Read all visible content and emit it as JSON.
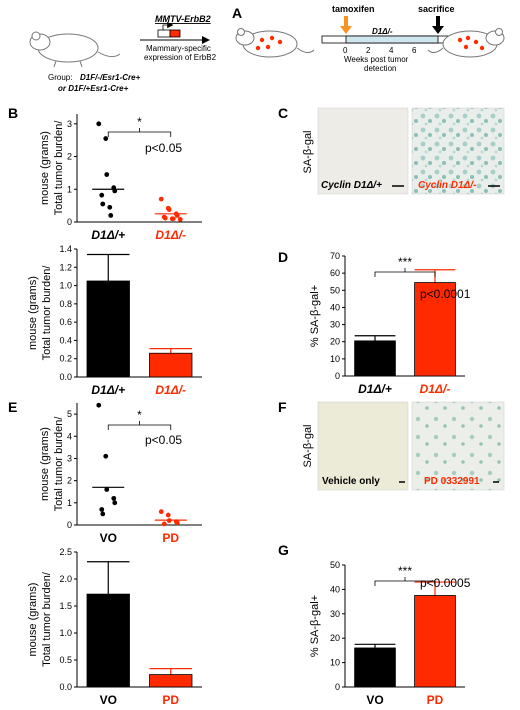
{
  "colors": {
    "black": "#000000",
    "red": "#ff2a00",
    "orange": "#f7941d",
    "timeline_fill": "#cfe6ee",
    "tissue_bg": "#efede8",
    "tissue_blue": "#9ec8c0"
  },
  "panel_a": {
    "letter": "A",
    "group_text": "Group:",
    "group_line1": "D1F/-/Esr1-Cre+",
    "group_line2": "or D1F/+Esr1-Cre+",
    "transgene": "MMTV-ErbB2",
    "expression_line1": "Mammary-specific",
    "expression_line2": "expression of ErbB2",
    "tamoxifen": "tamoxifen",
    "sacrifice": "sacrifice",
    "genotype": "D1Δ/-",
    "timeline_ticks": [
      "0",
      "2",
      "4",
      "6"
    ],
    "timeline_caption_line1": "Weeks post tumor",
    "timeline_caption_line2": "detection",
    "icons": [
      "mouse-icon",
      "arrow-icon",
      "tumor-mouse-icon"
    ]
  },
  "panel_c": {
    "letter": "C",
    "stain_label": "SA-β-gal",
    "left_label": "Cyclin D1Δ/+",
    "right_label": "Cyclin D1Δ/-"
  },
  "panel_f": {
    "letter": "F",
    "stain_label": "SA-β-gal",
    "left_label": "Vehicle only",
    "right_label": "PD 0332991"
  },
  "panel_b": {
    "letter": "B",
    "pval": "p<0.05",
    "sig": "*"
  },
  "panel_d": {
    "letter": "D",
    "pval": "p<0.0001",
    "sig": "***"
  },
  "panel_e": {
    "letter": "E",
    "pval": "p<0.05",
    "sig": "*"
  },
  "panel_g": {
    "letter": "G",
    "pval": "p<0.0005",
    "sig": "***"
  },
  "chart_data": [
    {
      "id": "B-scatter",
      "type": "scatter",
      "ylabel": "Total tumor burden/ mouse (grams)",
      "ylim": [
        0,
        3.3
      ],
      "yticks": [
        0,
        1,
        2,
        3
      ],
      "categories": [
        "D1Δ/+",
        "D1Δ/-"
      ],
      "series": [
        {
          "values": [
            3.0,
            2.55,
            1.45,
            1.05,
            0.95,
            0.82,
            0.55,
            0.45,
            0.2
          ],
          "mean": 1.0
        },
        {
          "values": [
            0.7,
            0.42,
            0.38,
            0.25,
            0.2,
            0.15,
            0.12,
            0.1,
            0.1,
            0.08
          ],
          "mean": 0.25
        }
      ]
    },
    {
      "id": "B-bar",
      "type": "bar",
      "ylabel": "Total tumor burden/ mouse (grams)",
      "ylim": [
        0,
        1.4
      ],
      "yticks": [
        0.0,
        0.2,
        0.4,
        0.6,
        0.8,
        1.0,
        1.2,
        1.4
      ],
      "categories": [
        "D1Δ/+",
        "D1Δ/-"
      ],
      "values": [
        1.05,
        0.26
      ],
      "errors": [
        0.29,
        0.05
      ]
    },
    {
      "id": "D-bar",
      "type": "bar",
      "ylabel": "% SA-β-gal+",
      "ylim": [
        0,
        70
      ],
      "yticks": [
        0,
        10,
        20,
        30,
        40,
        50,
        60,
        70
      ],
      "categories": [
        "D1Δ/+",
        "D1Δ/-"
      ],
      "values": [
        20.5,
        54.5
      ],
      "errors": [
        3.0,
        7.5
      ]
    },
    {
      "id": "E-scatter",
      "type": "scatter",
      "ylabel": "Total tumor burden/ mouse (grams)",
      "ylim": [
        0,
        5.5
      ],
      "yticks": [
        0,
        1,
        2,
        3,
        4,
        5
      ],
      "categories": [
        "VO",
        "PD"
      ],
      "series": [
        {
          "values": [
            5.4,
            3.1,
            1.6,
            1.2,
            1.0,
            0.7,
            0.5
          ],
          "mean": 1.7
        },
        {
          "values": [
            0.6,
            0.45,
            0.2,
            0.15,
            0.1,
            0.05
          ],
          "mean": 0.22
        }
      ]
    },
    {
      "id": "E-bar",
      "type": "bar",
      "ylabel": "Total tumor burden/ mouse (grams)",
      "ylim": [
        0,
        2.5
      ],
      "yticks": [
        0.0,
        0.5,
        1.0,
        1.5,
        2.0,
        2.5
      ],
      "categories": [
        "VO",
        "PD"
      ],
      "values": [
        1.72,
        0.23
      ],
      "errors": [
        0.6,
        0.11
      ]
    },
    {
      "id": "G-bar",
      "type": "bar",
      "ylabel": "% SA-β-gal+",
      "ylim": [
        0,
        50
      ],
      "yticks": [
        0,
        10,
        20,
        30,
        40,
        50
      ],
      "categories": [
        "VO",
        "PD"
      ],
      "values": [
        16,
        37.5
      ],
      "errors": [
        1.5,
        5.5
      ]
    }
  ]
}
